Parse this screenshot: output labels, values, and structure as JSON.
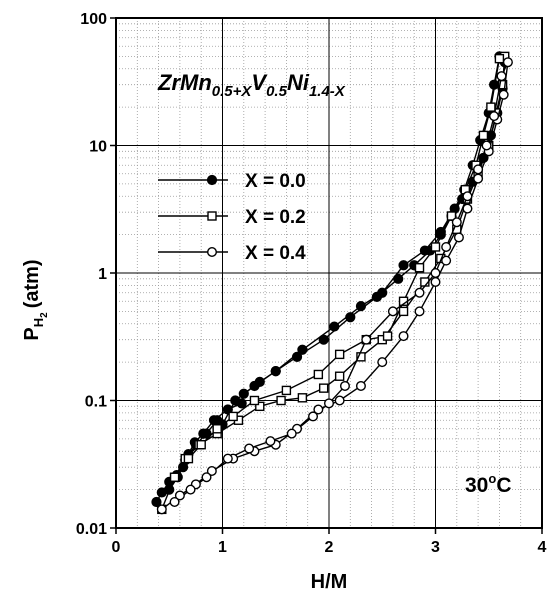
{
  "chart_data": {
    "type": "scatter",
    "title": "",
    "xlabel": "H/M",
    "ylabel_main": "P",
    "ylabel_sub": "H",
    "ylabel_subsub": "2",
    "ylabel_unit": "(atm)",
    "xlim": [
      0,
      4
    ],
    "ylim": [
      0.01,
      100
    ],
    "yscale": "log",
    "x_ticks": [
      0,
      1,
      2,
      3,
      4
    ],
    "x_tick_labels": [
      "0",
      "1",
      "2",
      "3",
      "4"
    ],
    "y_ticks": [
      0.01,
      0.1,
      1,
      10,
      100
    ],
    "y_tick_labels": [
      "0.01",
      "0.1",
      "1",
      "10",
      "100"
    ],
    "grid": true,
    "legend_position": "upper-left",
    "formula": {
      "base": "ZrMn",
      "sub1": "0.5+X",
      "mid": "V",
      "sub2": "0.5",
      "end": "Ni",
      "sub3": "1.4-X"
    },
    "temperature": {
      "value": "30",
      "degree": "o",
      "unit": "C"
    },
    "series": [
      {
        "name": "X = 0.0",
        "marker": "filled-circle",
        "points": [
          [
            0.38,
            0.016
          ],
          [
            0.43,
            0.019
          ],
          [
            0.5,
            0.023
          ],
          [
            0.57,
            0.026
          ],
          [
            0.63,
            0.03
          ],
          [
            0.68,
            0.038
          ],
          [
            0.74,
            0.047
          ],
          [
            0.82,
            0.055
          ],
          [
            0.92,
            0.07
          ],
          [
            1.05,
            0.085
          ],
          [
            1.18,
            0.095
          ],
          [
            1.2,
            0.113
          ],
          [
            1.35,
            0.14
          ],
          [
            1.5,
            0.17
          ],
          [
            1.7,
            0.22
          ],
          [
            1.95,
            0.3
          ],
          [
            2.2,
            0.45
          ],
          [
            2.45,
            0.65
          ],
          [
            2.65,
            0.9
          ],
          [
            2.8,
            1.15
          ],
          [
            2.95,
            1.5
          ],
          [
            3.05,
            2.0
          ],
          [
            3.15,
            2.8
          ],
          [
            3.25,
            3.8
          ],
          [
            3.35,
            5.2
          ],
          [
            3.45,
            8.0
          ],
          [
            3.52,
            12.0
          ],
          [
            3.58,
            18.0
          ],
          [
            3.63,
            28.0
          ],
          [
            3.65,
            45.0
          ],
          [
            3.6,
            50.0
          ],
          [
            3.55,
            30.0
          ],
          [
            3.5,
            18.0
          ],
          [
            3.42,
            11.0
          ],
          [
            3.35,
            7.0
          ],
          [
            3.27,
            4.5
          ],
          [
            3.18,
            3.2
          ],
          [
            3.05,
            2.1
          ],
          [
            2.9,
            1.5
          ],
          [
            2.7,
            1.15
          ],
          [
            2.5,
            0.7
          ],
          [
            2.3,
            0.55
          ],
          [
            2.05,
            0.38
          ],
          [
            1.75,
            0.25
          ],
          [
            1.5,
            0.17
          ],
          [
            1.3,
            0.13
          ],
          [
            1.12,
            0.1
          ],
          [
            1.0,
            0.065
          ],
          [
            0.95,
            0.07
          ],
          [
            0.85,
            0.055
          ],
          [
            0.75,
            0.045
          ],
          [
            0.65,
            0.034
          ],
          [
            0.58,
            0.025
          ],
          [
            0.5,
            0.02
          ]
        ]
      },
      {
        "name": "X = 0.2",
        "marker": "open-square",
        "points": [
          [
            0.43,
            0.014
          ],
          [
            0.55,
            0.025
          ],
          [
            0.65,
            0.035
          ],
          [
            0.78,
            0.045
          ],
          [
            0.95,
            0.055
          ],
          [
            1.15,
            0.07
          ],
          [
            1.35,
            0.09
          ],
          [
            1.55,
            0.1
          ],
          [
            1.75,
            0.105
          ],
          [
            1.95,
            0.125
          ],
          [
            2.1,
            0.155
          ],
          [
            2.3,
            0.22
          ],
          [
            2.5,
            0.3
          ],
          [
            2.7,
            0.5
          ],
          [
            2.9,
            0.85
          ],
          [
            3.05,
            1.3
          ],
          [
            3.2,
            2.2
          ],
          [
            3.3,
            3.8
          ],
          [
            3.4,
            6.0
          ],
          [
            3.5,
            10.0
          ],
          [
            3.57,
            18.0
          ],
          [
            3.63,
            30.0
          ],
          [
            3.65,
            50.0
          ],
          [
            3.6,
            48.0
          ],
          [
            3.52,
            20.0
          ],
          [
            3.45,
            12.0
          ],
          [
            3.38,
            7.0
          ],
          [
            3.28,
            4.5
          ],
          [
            3.15,
            2.8
          ],
          [
            3.0,
            1.6
          ],
          [
            2.85,
            1.1
          ],
          [
            2.7,
            0.6
          ],
          [
            2.55,
            0.32
          ],
          [
            2.35,
            0.3
          ],
          [
            2.1,
            0.23
          ],
          [
            1.9,
            0.16
          ],
          [
            1.6,
            0.12
          ],
          [
            1.3,
            0.1
          ],
          [
            1.1,
            0.075
          ],
          [
            0.95,
            0.06
          ],
          [
            0.8,
            0.045
          ],
          [
            0.68,
            0.035
          ],
          [
            0.55,
            0.025
          ]
        ]
      },
      {
        "name": "X = 0.4",
        "marker": "open-circle",
        "points": [
          [
            0.43,
            0.014
          ],
          [
            0.6,
            0.018
          ],
          [
            0.75,
            0.022
          ],
          [
            0.9,
            0.028
          ],
          [
            1.1,
            0.035
          ],
          [
            1.3,
            0.04
          ],
          [
            1.5,
            0.045
          ],
          [
            1.7,
            0.06
          ],
          [
            1.9,
            0.085
          ],
          [
            2.1,
            0.1
          ],
          [
            2.3,
            0.13
          ],
          [
            2.5,
            0.2
          ],
          [
            2.7,
            0.32
          ],
          [
            2.85,
            0.5
          ],
          [
            3.0,
            0.85
          ],
          [
            3.1,
            1.25
          ],
          [
            3.22,
            1.9
          ],
          [
            3.3,
            3.2
          ],
          [
            3.4,
            5.5
          ],
          [
            3.5,
            9.0
          ],
          [
            3.58,
            16.0
          ],
          [
            3.64,
            25.0
          ],
          [
            3.68,
            45.0
          ],
          [
            3.62,
            35.0
          ],
          [
            3.55,
            17.0
          ],
          [
            3.48,
            10.0
          ],
          [
            3.4,
            6.5
          ],
          [
            3.3,
            4.0
          ],
          [
            3.2,
            2.5
          ],
          [
            3.1,
            1.6
          ],
          [
            3.0,
            1.0
          ],
          [
            2.85,
            0.7
          ],
          [
            2.6,
            0.5
          ],
          [
            2.35,
            0.3
          ],
          [
            2.15,
            0.13
          ],
          [
            2.0,
            0.095
          ],
          [
            1.85,
            0.075
          ],
          [
            1.65,
            0.055
          ],
          [
            1.45,
            0.048
          ],
          [
            1.25,
            0.042
          ],
          [
            1.05,
            0.035
          ],
          [
            0.85,
            0.025
          ],
          [
            0.7,
            0.02
          ],
          [
            0.55,
            0.016
          ]
        ]
      }
    ]
  }
}
